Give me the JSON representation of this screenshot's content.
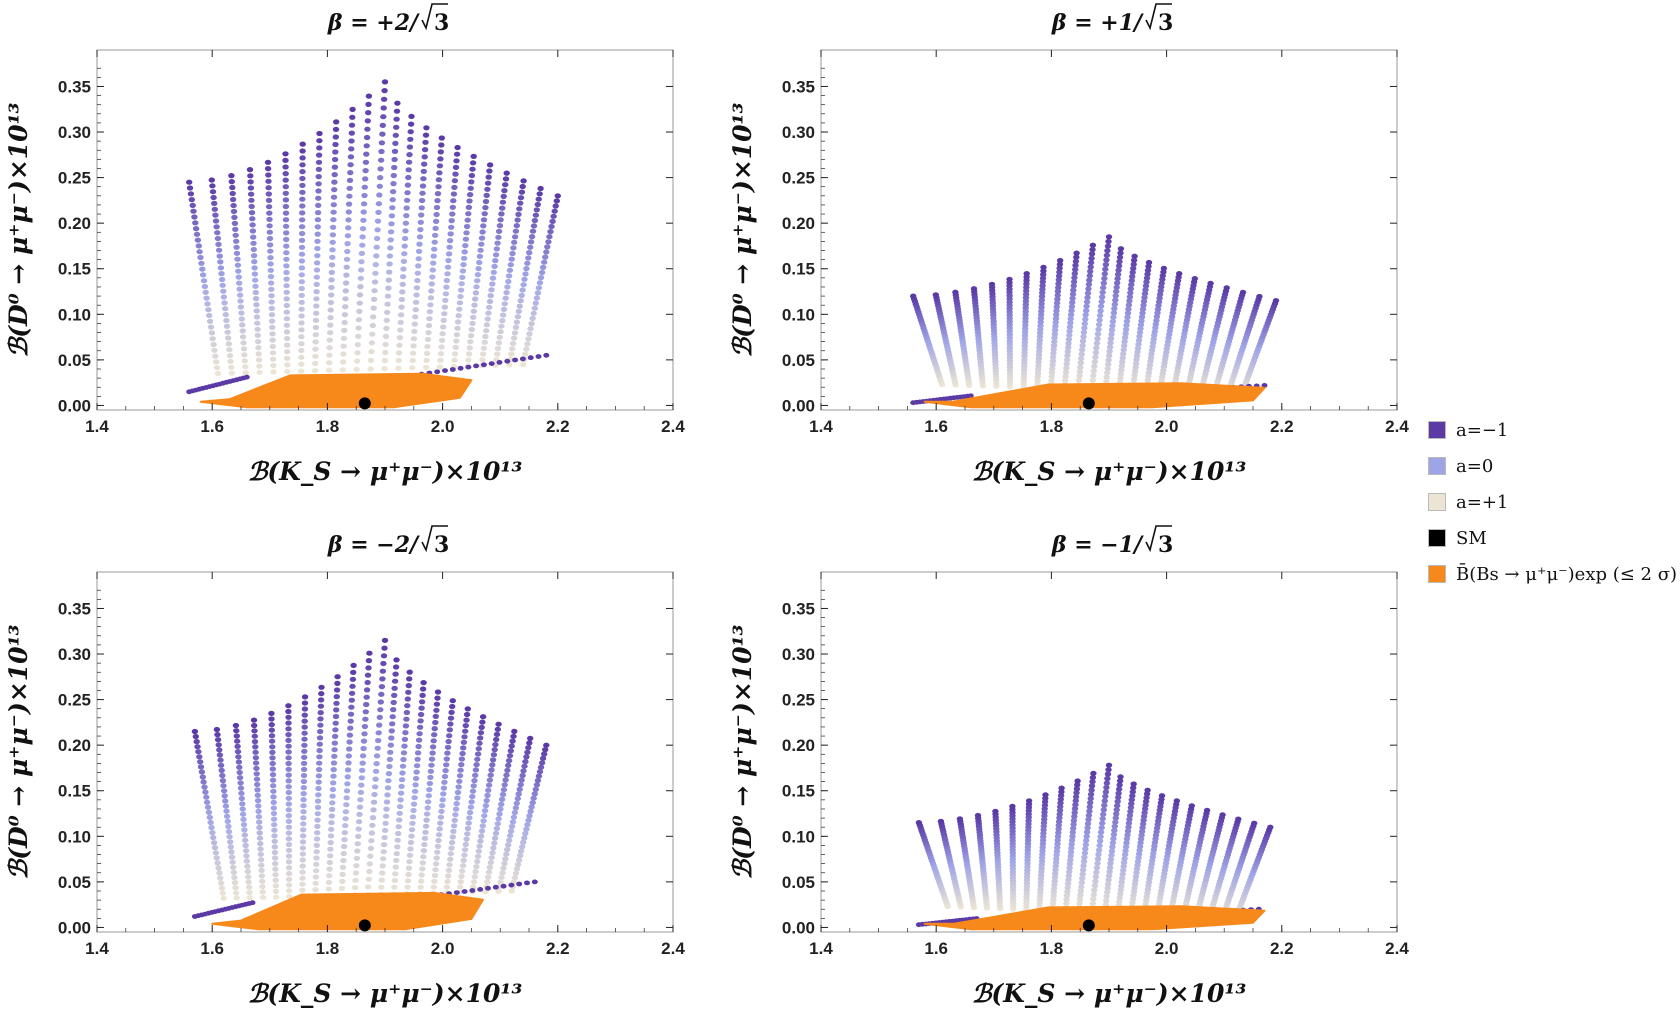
{
  "figure": {
    "axis_color": "#222222",
    "frame_color": "#9a9a9a"
  },
  "chart_data": [
    {
      "type": "scatter",
      "title": "β = +2/√3",
      "title_prefix": "β = +2/",
      "title_radicand": "3",
      "xlabel": "ℬ(K_S → μ⁺μ⁻)×10¹³",
      "ylabel": "ℬ(D⁰ → μ⁺μ⁻)×10¹³",
      "xlim": [
        1.4,
        2.4
      ],
      "ylim": [
        -0.005,
        0.39
      ],
      "xticks": [
        "1.4",
        "1.6",
        "1.8",
        "2.0",
        "2.2",
        "2.4"
      ],
      "yticks": [
        "0.00",
        "0.05",
        "0.10",
        "0.15",
        "0.20",
        "0.25",
        "0.30",
        "0.35"
      ],
      "series": [
        {
          "name": "a=−1",
          "color": "#5b3aa6",
          "envelope": {
            "x_min": 1.56,
            "x_center": 1.9,
            "x_max": 2.2,
            "left_edge_y": 0.245,
            "right_edge_y": 0.23,
            "center_peak_y": 0.355,
            "lower_left_y": 0.015,
            "lower_right_y": 0.055
          }
        },
        {
          "name": "a=0",
          "color": "#9ea4e6"
        },
        {
          "name": "a=+1",
          "color": "#ece5d4"
        },
        {
          "name": "B̄(Bs → μ⁺μ⁻) exp (≤ 2σ)",
          "color": "#f7881a",
          "band": {
            "x_min": 1.58,
            "x_max": 2.05,
            "y_max": 0.035
          }
        },
        {
          "name": "SM",
          "color": "#000000",
          "x": [
            1.865
          ],
          "y": [
            0.0
          ]
        }
      ]
    },
    {
      "type": "scatter",
      "title": "β = +1/√3",
      "title_prefix": "β = +1/",
      "title_radicand": "3",
      "xlabel": "ℬ(K_S → μ⁺μ⁻)×10¹³",
      "ylabel": "ℬ(D⁰ → μ⁺μ⁻)×10¹³",
      "xlim": [
        1.4,
        2.4
      ],
      "ylim": [
        -0.005,
        0.39
      ],
      "xticks": [
        "1.4",
        "1.6",
        "1.8",
        "2.0",
        "2.2",
        "2.4"
      ],
      "yticks": [
        "0.00",
        "0.05",
        "0.10",
        "0.15",
        "0.20",
        "0.25",
        "0.30",
        "0.35"
      ],
      "series": [
        {
          "name": "a=−1",
          "color": "#5b3aa6",
          "envelope": {
            "x_min": 1.56,
            "x_center": 1.9,
            "x_max": 2.19,
            "left_edge_y": 0.12,
            "right_edge_y": 0.115,
            "center_peak_y": 0.185,
            "lower_left_y": 0.003,
            "lower_right_y": 0.022
          }
        },
        {
          "name": "a=0",
          "color": "#9ea4e6"
        },
        {
          "name": "a=+1",
          "color": "#ece5d4"
        },
        {
          "name": "B̄(Bs → μ⁺μ⁻) exp (≤ 2σ)",
          "color": "#f7881a",
          "band": {
            "x_min": 1.58,
            "x_max": 2.17,
            "y_max": 0.025
          }
        },
        {
          "name": "SM",
          "color": "#000000",
          "x": [
            1.865
          ],
          "y": [
            0.0
          ]
        }
      ]
    },
    {
      "type": "scatter",
      "title": "β = −2/√3",
      "title_prefix": "β = −2/",
      "title_radicand": "3",
      "xlabel": "ℬ(K_S → μ⁺μ⁻)×10¹³",
      "ylabel": "ℬ(D⁰ → μ⁺μ⁻)×10¹³",
      "xlim": [
        1.4,
        2.4
      ],
      "ylim": [
        -0.005,
        0.39
      ],
      "xticks": [
        "1.4",
        "1.6",
        "1.8",
        "2.0",
        "2.2",
        "2.4"
      ],
      "yticks": [
        "0.00",
        "0.05",
        "0.10",
        "0.15",
        "0.20",
        "0.25",
        "0.30",
        "0.35"
      ],
      "series": [
        {
          "name": "a=−1",
          "color": "#5b3aa6",
          "envelope": {
            "x_min": 1.57,
            "x_center": 1.9,
            "x_max": 2.18,
            "left_edge_y": 0.215,
            "right_edge_y": 0.2,
            "center_peak_y": 0.315,
            "lower_left_y": 0.012,
            "lower_right_y": 0.05
          }
        },
        {
          "name": "a=0",
          "color": "#9ea4e6"
        },
        {
          "name": "a=+1",
          "color": "#ece5d4"
        },
        {
          "name": "B̄(Bs → μ⁺μ⁻) exp (≤ 2σ)",
          "color": "#f7881a",
          "band": {
            "x_min": 1.6,
            "x_max": 2.07,
            "y_max": 0.038
          }
        },
        {
          "name": "SM",
          "color": "#000000",
          "x": [
            1.865
          ],
          "y": [
            0.0
          ]
        }
      ]
    },
    {
      "type": "scatter",
      "title": "β = −1/√3",
      "title_prefix": "β = −1/",
      "title_radicand": "3",
      "xlabel": "ℬ(K_S → μ⁺μ⁻)×10¹³",
      "ylabel": "ℬ(D⁰ → μ⁺μ⁻)×10¹³",
      "xlim": [
        1.4,
        2.4
      ],
      "ylim": [
        -0.005,
        0.39
      ],
      "xticks": [
        "1.4",
        "1.6",
        "1.8",
        "2.0",
        "2.2",
        "2.4"
      ],
      "yticks": [
        "0.00",
        "0.05",
        "0.10",
        "0.15",
        "0.20",
        "0.25",
        "0.30",
        "0.35"
      ],
      "series": [
        {
          "name": "a=−1",
          "color": "#5b3aa6",
          "envelope": {
            "x_min": 1.57,
            "x_center": 1.9,
            "x_max": 2.18,
            "left_edge_y": 0.115,
            "right_edge_y": 0.11,
            "center_peak_y": 0.178,
            "lower_left_y": 0.003,
            "lower_right_y": 0.02
          }
        },
        {
          "name": "a=0",
          "color": "#9ea4e6"
        },
        {
          "name": "a=+1",
          "color": "#ece5d4"
        },
        {
          "name": "B̄(Bs → μ⁺μ⁻) exp (≤ 2σ)",
          "color": "#f7881a",
          "band": {
            "x_min": 1.58,
            "x_max": 2.17,
            "y_max": 0.024
          }
        },
        {
          "name": "SM",
          "color": "#000000",
          "x": [
            1.865
          ],
          "y": [
            0.0
          ]
        }
      ]
    }
  ],
  "legend": {
    "items": [
      {
        "label": "a=−1",
        "color": "#5b3aa6"
      },
      {
        "label": "a=0",
        "color": "#9ea4e6"
      },
      {
        "label": "a=+1",
        "color": "#ece5d4"
      },
      {
        "label": "SM",
        "color": "#000000"
      },
      {
        "label": "B̄(Bs → μ⁺μ⁻)exp (≤ 2 σ)",
        "color": "#f7881a"
      }
    ]
  }
}
